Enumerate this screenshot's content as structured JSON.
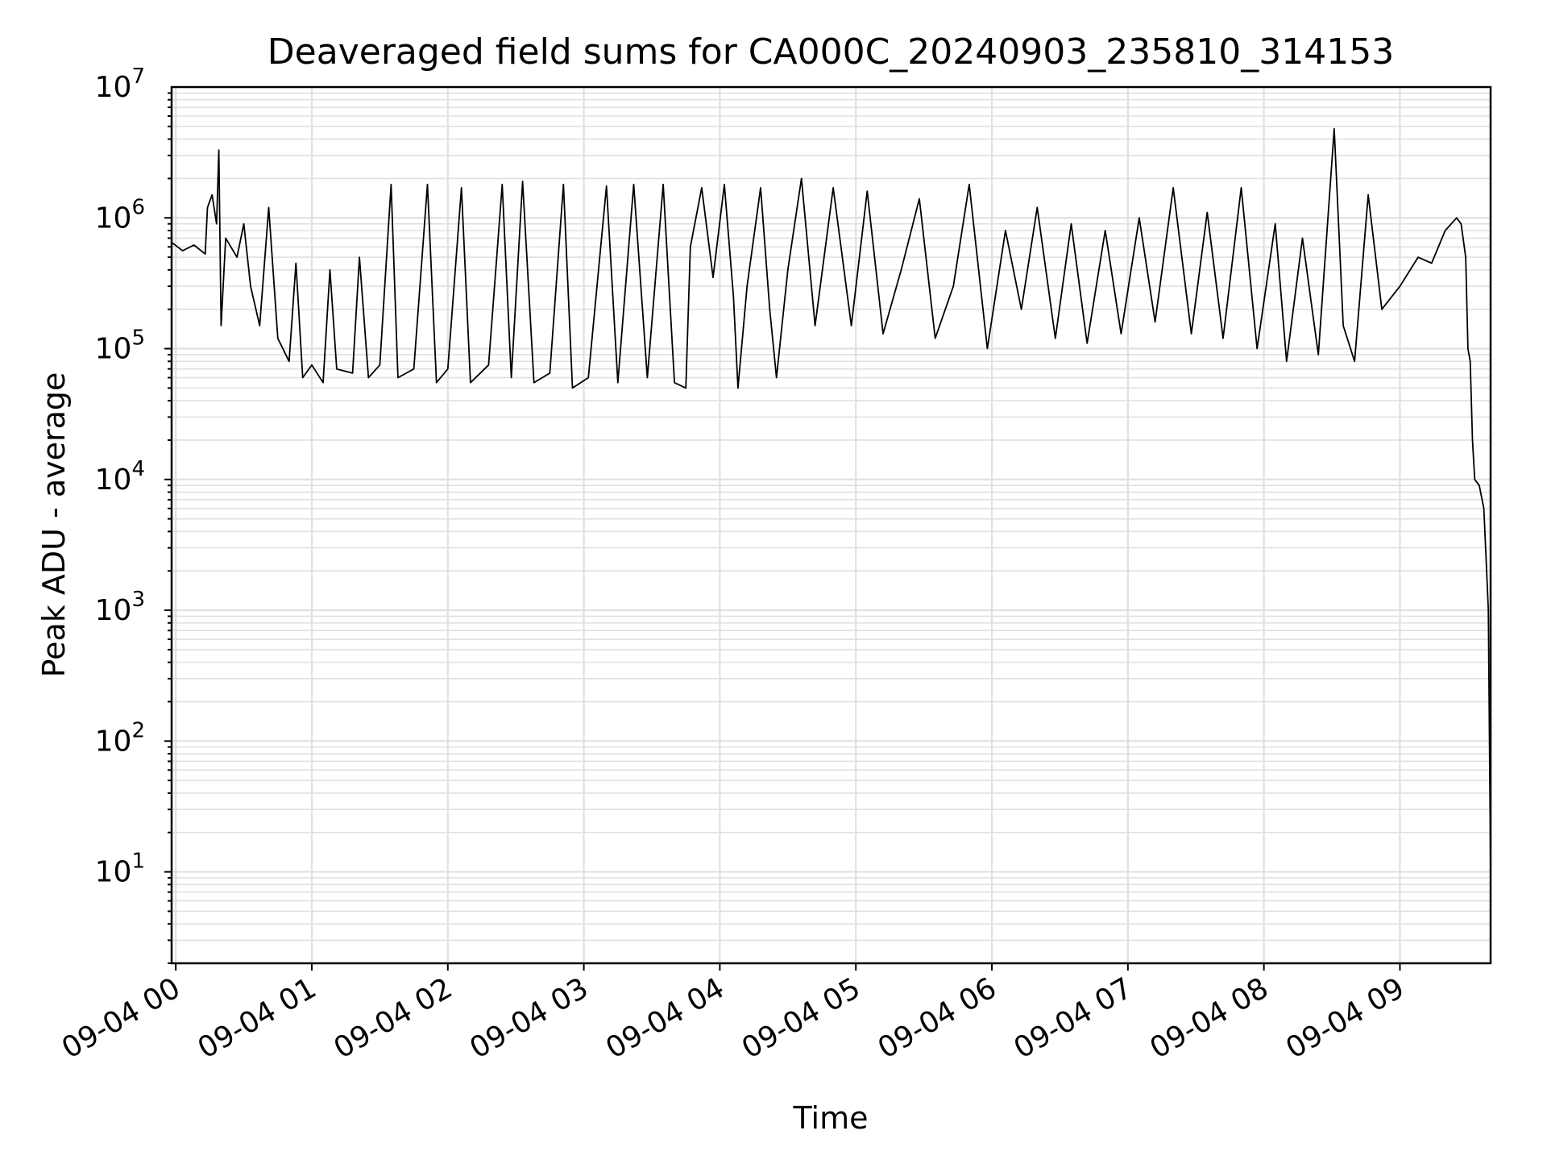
{
  "chart_data": {
    "type": "line",
    "title": "Deaveraged field sums for CA000C_20240903_235810_314153",
    "xlabel": "Time",
    "ylabel": "Peak ADU - average",
    "y_scale": "log",
    "ylim": [
      2,
      10000000
    ],
    "x_range": [
      "2024-09-03 23:58:10",
      "2024-09-04 09:40:00"
    ],
    "grid": true,
    "legend": "none",
    "colors": {
      "line": "#000000",
      "grid": "#e0e0e0",
      "axes": "#000000"
    },
    "x_ticks": [
      {
        "t": "2024-09-04 00:00",
        "label": "09-04 00"
      },
      {
        "t": "2024-09-04 01:00",
        "label": "09-04 01"
      },
      {
        "t": "2024-09-04 02:00",
        "label": "09-04 02"
      },
      {
        "t": "2024-09-04 03:00",
        "label": "09-04 03"
      },
      {
        "t": "2024-09-04 04:00",
        "label": "09-04 04"
      },
      {
        "t": "2024-09-04 05:00",
        "label": "09-04 05"
      },
      {
        "t": "2024-09-04 06:00",
        "label": "09-04 06"
      },
      {
        "t": "2024-09-04 07:00",
        "label": "09-04 07"
      },
      {
        "t": "2024-09-04 08:00",
        "label": "09-04 08"
      },
      {
        "t": "2024-09-04 09:00",
        "label": "09-04 09"
      }
    ],
    "y_ticks": [
      {
        "value": 10,
        "base": "10",
        "exp": "1"
      },
      {
        "value": 100,
        "base": "10",
        "exp": "2"
      },
      {
        "value": 1000,
        "base": "10",
        "exp": "3"
      },
      {
        "value": 10000,
        "base": "10",
        "exp": "4"
      },
      {
        "value": 100000,
        "base": "10",
        "exp": "5"
      },
      {
        "value": 1000000,
        "base": "10",
        "exp": "6"
      },
      {
        "value": 10000000,
        "base": "10",
        "exp": "7"
      }
    ],
    "series": [
      {
        "points": [
          [
            "2024-09-03 23:58:10",
            650000
          ],
          [
            "2024-09-04 00:03",
            560000
          ],
          [
            "2024-09-04 00:08",
            620000
          ],
          [
            "2024-09-04 00:13",
            530000
          ],
          [
            "2024-09-04 00:14",
            1200000
          ],
          [
            "2024-09-04 00:16",
            1500000
          ],
          [
            "2024-09-04 00:18",
            900000
          ],
          [
            "2024-09-04 00:19",
            3300000
          ],
          [
            "2024-09-04 00:20",
            150000
          ],
          [
            "2024-09-04 00:22",
            700000
          ],
          [
            "2024-09-04 00:27",
            500000
          ],
          [
            "2024-09-04 00:30",
            900000
          ],
          [
            "2024-09-04 00:33",
            300000
          ],
          [
            "2024-09-04 00:37",
            150000
          ],
          [
            "2024-09-04 00:41",
            1200000
          ],
          [
            "2024-09-04 00:45",
            120000
          ],
          [
            "2024-09-04 00:50",
            80000
          ],
          [
            "2024-09-04 00:53",
            450000
          ],
          [
            "2024-09-04 00:56",
            60000
          ],
          [
            "2024-09-04 01:00",
            75000
          ],
          [
            "2024-09-04 01:05",
            55000
          ],
          [
            "2024-09-04 01:08",
            400000
          ],
          [
            "2024-09-04 01:11",
            70000
          ],
          [
            "2024-09-04 01:18",
            65000
          ],
          [
            "2024-09-04 01:21",
            500000
          ],
          [
            "2024-09-04 01:25",
            60000
          ],
          [
            "2024-09-04 01:30",
            75000
          ],
          [
            "2024-09-04 01:35",
            1800000
          ],
          [
            "2024-09-04 01:38",
            60000
          ],
          [
            "2024-09-04 01:45",
            70000
          ],
          [
            "2024-09-04 01:51",
            1800000
          ],
          [
            "2024-09-04 01:55",
            55000
          ],
          [
            "2024-09-04 02:00",
            70000
          ],
          [
            "2024-09-04 02:06",
            1700000
          ],
          [
            "2024-09-04 02:10",
            55000
          ],
          [
            "2024-09-04 02:18",
            75000
          ],
          [
            "2024-09-04 02:24",
            1800000
          ],
          [
            "2024-09-04 02:28",
            60000
          ],
          [
            "2024-09-04 02:33",
            1900000
          ],
          [
            "2024-09-04 02:38",
            55000
          ],
          [
            "2024-09-04 02:45",
            65000
          ],
          [
            "2024-09-04 02:51",
            1800000
          ],
          [
            "2024-09-04 02:55",
            50000
          ],
          [
            "2024-09-04 03:02",
            60000
          ],
          [
            "2024-09-04 03:10",
            1750000
          ],
          [
            "2024-09-04 03:15",
            55000
          ],
          [
            "2024-09-04 03:22",
            1800000
          ],
          [
            "2024-09-04 03:28",
            60000
          ],
          [
            "2024-09-04 03:35",
            1800000
          ],
          [
            "2024-09-04 03:40",
            55000
          ],
          [
            "2024-09-04 03:45",
            50000
          ],
          [
            "2024-09-04 03:47",
            600000
          ],
          [
            "2024-09-04 03:52",
            1700000
          ],
          [
            "2024-09-04 03:57",
            350000
          ],
          [
            "2024-09-04 04:02",
            1800000
          ],
          [
            "2024-09-04 04:06",
            250000
          ],
          [
            "2024-09-04 04:08",
            50000
          ],
          [
            "2024-09-04 04:12",
            300000
          ],
          [
            "2024-09-04 04:18",
            1700000
          ],
          [
            "2024-09-04 04:22",
            200000
          ],
          [
            "2024-09-04 04:25",
            60000
          ],
          [
            "2024-09-04 04:30",
            400000
          ],
          [
            "2024-09-04 04:36",
            2000000
          ],
          [
            "2024-09-04 04:42",
            150000
          ],
          [
            "2024-09-04 04:50",
            1700000
          ],
          [
            "2024-09-04 04:58",
            150000
          ],
          [
            "2024-09-04 05:05",
            1600000
          ],
          [
            "2024-09-04 05:12",
            130000
          ],
          [
            "2024-09-04 05:20",
            400000
          ],
          [
            "2024-09-04 05:28",
            1400000
          ],
          [
            "2024-09-04 05:35",
            120000
          ],
          [
            "2024-09-04 05:43",
            300000
          ],
          [
            "2024-09-04 05:50",
            1800000
          ],
          [
            "2024-09-04 05:58",
            100000
          ],
          [
            "2024-09-04 06:06",
            800000
          ],
          [
            "2024-09-04 06:13",
            200000
          ],
          [
            "2024-09-04 06:20",
            1200000
          ],
          [
            "2024-09-04 06:28",
            120000
          ],
          [
            "2024-09-04 06:35",
            900000
          ],
          [
            "2024-09-04 06:42",
            110000
          ],
          [
            "2024-09-04 06:50",
            800000
          ],
          [
            "2024-09-04 06:57",
            130000
          ],
          [
            "2024-09-04 07:05",
            1000000
          ],
          [
            "2024-09-04 07:12",
            160000
          ],
          [
            "2024-09-04 07:20",
            1700000
          ],
          [
            "2024-09-04 07:28",
            130000
          ],
          [
            "2024-09-04 07:35",
            1100000
          ],
          [
            "2024-09-04 07:42",
            120000
          ],
          [
            "2024-09-04 07:50",
            1700000
          ],
          [
            "2024-09-04 07:57",
            100000
          ],
          [
            "2024-09-04 08:05",
            900000
          ],
          [
            "2024-09-04 08:10",
            80000
          ],
          [
            "2024-09-04 08:17",
            700000
          ],
          [
            "2024-09-04 08:24",
            90000
          ],
          [
            "2024-09-04 08:31",
            4800000
          ],
          [
            "2024-09-04 08:35",
            150000
          ],
          [
            "2024-09-04 08:40",
            80000
          ],
          [
            "2024-09-04 08:46",
            1500000
          ],
          [
            "2024-09-04 08:52",
            200000
          ],
          [
            "2024-09-04 09:00",
            300000
          ],
          [
            "2024-09-04 09:08",
            500000
          ],
          [
            "2024-09-04 09:14",
            450000
          ],
          [
            "2024-09-04 09:20",
            800000
          ],
          [
            "2024-09-04 09:25",
            1000000
          ],
          [
            "2024-09-04 09:27",
            900000
          ],
          [
            "2024-09-04 09:29",
            500000
          ],
          [
            "2024-09-04 09:30",
            100000
          ],
          [
            "2024-09-04 09:31",
            80000
          ],
          [
            "2024-09-04 09:32",
            20000
          ],
          [
            "2024-09-04 09:33",
            10000
          ],
          [
            "2024-09-04 09:35",
            9000
          ],
          [
            "2024-09-04 09:37",
            6000
          ],
          [
            "2024-09-04 09:38",
            2500
          ],
          [
            "2024-09-04 09:39",
            1000
          ],
          [
            "2024-09-04 09:40",
            10
          ]
        ]
      }
    ]
  }
}
